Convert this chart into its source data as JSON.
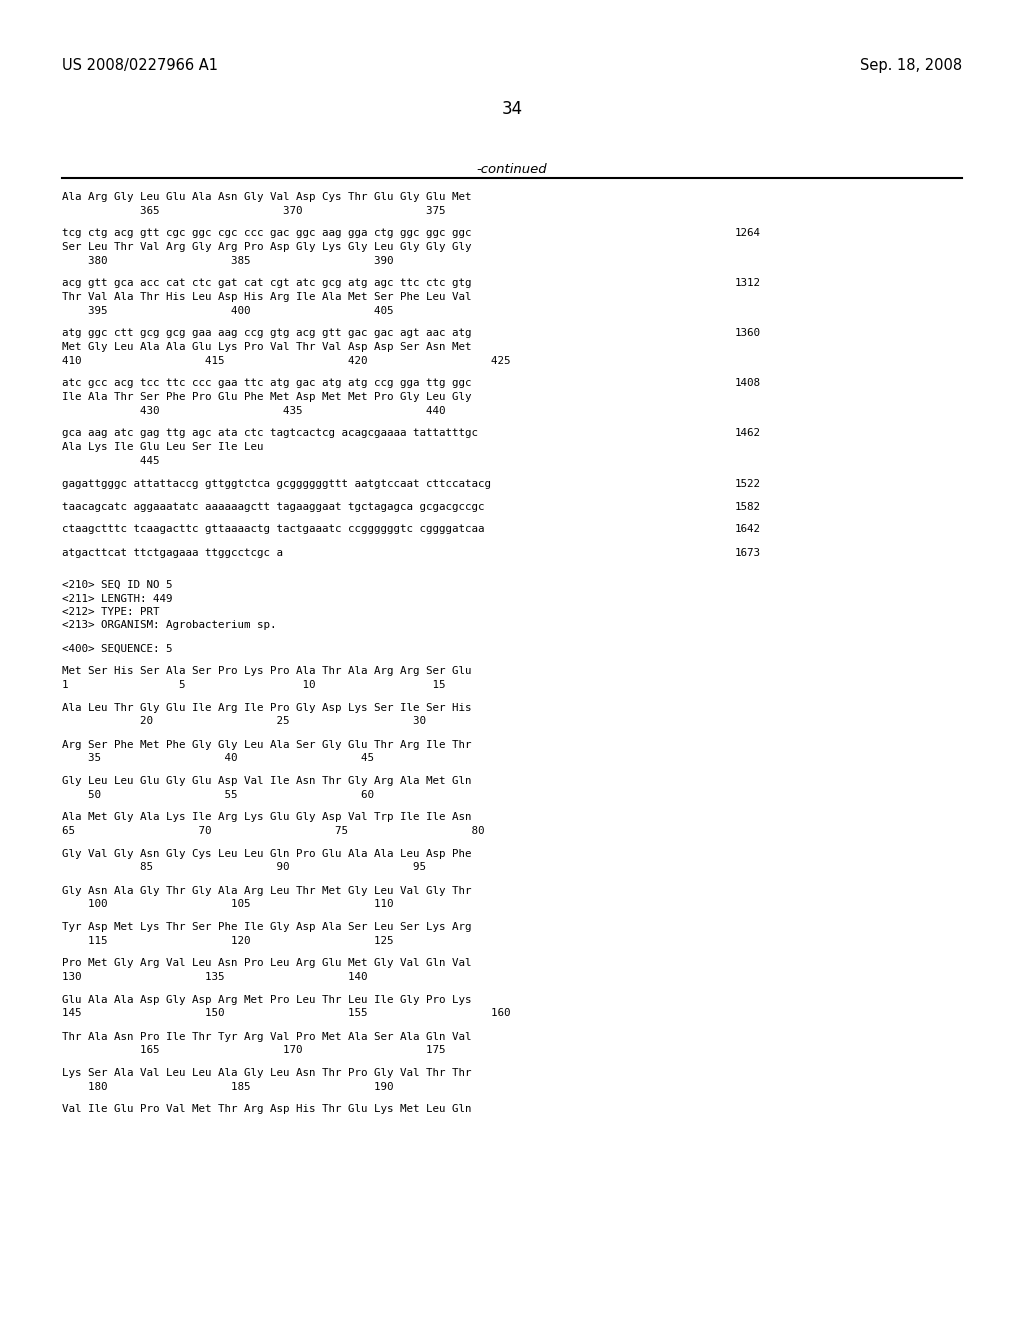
{
  "header_left": "US 2008/0227966 A1",
  "header_right": "Sep. 18, 2008",
  "page_number": "34",
  "continued_label": "-continued",
  "content": [
    {
      "type": "seq",
      "text": "Ala Arg Gly Leu Glu Ala Asn Gly Val Asp Cys Thr Glu Gly Glu Met"
    },
    {
      "type": "num",
      "text": "            365                   370                   375"
    },
    {
      "type": "blank"
    },
    {
      "type": "dna",
      "text": "tcg ctg acg gtt cgc ggc cgc ccc gac ggc aag gga ctg ggc ggc ggc",
      "num": "1264"
    },
    {
      "type": "seq",
      "text": "Ser Leu Thr Val Arg Gly Arg Pro Asp Gly Lys Gly Leu Gly Gly Gly"
    },
    {
      "type": "num",
      "text": "    380                   385                   390"
    },
    {
      "type": "blank"
    },
    {
      "type": "dna",
      "text": "acg gtt gca acc cat ctc gat cat cgt atc gcg atg agc ttc ctc gtg",
      "num": "1312"
    },
    {
      "type": "seq",
      "text": "Thr Val Ala Thr His Leu Asp His Arg Ile Ala Met Ser Phe Leu Val"
    },
    {
      "type": "num",
      "text": "    395                   400                   405"
    },
    {
      "type": "blank"
    },
    {
      "type": "dna",
      "text": "atg ggc ctt gcg gcg gaa aag ccg gtg acg gtt gac gac agt aac atg",
      "num": "1360"
    },
    {
      "type": "seq",
      "text": "Met Gly Leu Ala Ala Glu Lys Pro Val Thr Val Asp Asp Ser Asn Met"
    },
    {
      "type": "num",
      "text": "410                   415                   420                   425"
    },
    {
      "type": "blank"
    },
    {
      "type": "dna",
      "text": "atc gcc acg tcc ttc ccc gaa ttc atg gac atg atg ccg gga ttg ggc",
      "num": "1408"
    },
    {
      "type": "seq",
      "text": "Ile Ala Thr Ser Phe Pro Glu Phe Met Asp Met Met Pro Gly Leu Gly"
    },
    {
      "type": "num",
      "text": "            430                   435                   440"
    },
    {
      "type": "blank"
    },
    {
      "type": "dna",
      "text": "gca aag atc gag ttg agc ata ctc tagtcactcg acagcgaaaa tattatttgc",
      "num": "1462"
    },
    {
      "type": "seq",
      "text": "Ala Lys Ile Glu Leu Ser Ile Leu"
    },
    {
      "type": "num",
      "text": "            445"
    },
    {
      "type": "blank"
    },
    {
      "type": "dna",
      "text": "gagattgggc attattaccg gttggtctca gcggggggttt aatgtccaat cttccatacg",
      "num": "1522"
    },
    {
      "type": "blank"
    },
    {
      "type": "dna",
      "text": "taacagcatc aggaaatatc aaaaaagctt tagaaggaat tgctagagca gcgacgccgc",
      "num": "1582"
    },
    {
      "type": "blank"
    },
    {
      "type": "dna",
      "text": "ctaagctttc tcaagacttc gttaaaactg tactgaaatc ccggggggtc cggggatcaa",
      "num": "1642"
    },
    {
      "type": "blank"
    },
    {
      "type": "dna",
      "text": "atgacttcat ttctgagaaa ttggcctcgc a",
      "num": "1673"
    },
    {
      "type": "blank"
    },
    {
      "type": "blank"
    },
    {
      "type": "meta",
      "text": "<210> SEQ ID NO 5"
    },
    {
      "type": "meta",
      "text": "<211> LENGTH: 449"
    },
    {
      "type": "meta",
      "text": "<212> TYPE: PRT"
    },
    {
      "type": "meta",
      "text": "<213> ORGANISM: Agrobacterium sp."
    },
    {
      "type": "blank"
    },
    {
      "type": "meta",
      "text": "<400> SEQUENCE: 5"
    },
    {
      "type": "blank"
    },
    {
      "type": "seq",
      "text": "Met Ser His Ser Ala Ser Pro Lys Pro Ala Thr Ala Arg Arg Ser Glu"
    },
    {
      "type": "num",
      "text": "1                 5                  10                  15"
    },
    {
      "type": "blank"
    },
    {
      "type": "seq",
      "text": "Ala Leu Thr Gly Glu Ile Arg Ile Pro Gly Asp Lys Ser Ile Ser His"
    },
    {
      "type": "num",
      "text": "            20                   25                   30"
    },
    {
      "type": "blank"
    },
    {
      "type": "seq",
      "text": "Arg Ser Phe Met Phe Gly Gly Leu Ala Ser Gly Glu Thr Arg Ile Thr"
    },
    {
      "type": "num",
      "text": "    35                   40                   45"
    },
    {
      "type": "blank"
    },
    {
      "type": "seq",
      "text": "Gly Leu Leu Glu Gly Glu Asp Val Ile Asn Thr Gly Arg Ala Met Gln"
    },
    {
      "type": "num",
      "text": "    50                   55                   60"
    },
    {
      "type": "blank"
    },
    {
      "type": "seq",
      "text": "Ala Met Gly Ala Lys Ile Arg Lys Glu Gly Asp Val Trp Ile Ile Asn"
    },
    {
      "type": "num",
      "text": "65                   70                   75                   80"
    },
    {
      "type": "blank"
    },
    {
      "type": "seq",
      "text": "Gly Val Gly Asn Gly Cys Leu Leu Gln Pro Glu Ala Ala Leu Asp Phe"
    },
    {
      "type": "num",
      "text": "            85                   90                   95"
    },
    {
      "type": "blank"
    },
    {
      "type": "seq",
      "text": "Gly Asn Ala Gly Thr Gly Ala Arg Leu Thr Met Gly Leu Val Gly Thr"
    },
    {
      "type": "num",
      "text": "    100                   105                   110"
    },
    {
      "type": "blank"
    },
    {
      "type": "seq",
      "text": "Tyr Asp Met Lys Thr Ser Phe Ile Gly Asp Ala Ser Leu Ser Lys Arg"
    },
    {
      "type": "num",
      "text": "    115                   120                   125"
    },
    {
      "type": "blank"
    },
    {
      "type": "seq",
      "text": "Pro Met Gly Arg Val Leu Asn Pro Leu Arg Glu Met Gly Val Gln Val"
    },
    {
      "type": "num",
      "text": "130                   135                   140"
    },
    {
      "type": "blank"
    },
    {
      "type": "seq",
      "text": "Glu Ala Ala Asp Gly Asp Arg Met Pro Leu Thr Leu Ile Gly Pro Lys"
    },
    {
      "type": "num",
      "text": "145                   150                   155                   160"
    },
    {
      "type": "blank"
    },
    {
      "type": "seq",
      "text": "Thr Ala Asn Pro Ile Thr Tyr Arg Val Pro Met Ala Ser Ala Gln Val"
    },
    {
      "type": "num",
      "text": "            165                   170                   175"
    },
    {
      "type": "blank"
    },
    {
      "type": "seq",
      "text": "Lys Ser Ala Val Leu Leu Ala Gly Leu Asn Thr Pro Gly Val Thr Thr"
    },
    {
      "type": "num",
      "text": "    180                   185                   190"
    },
    {
      "type": "blank"
    },
    {
      "type": "seq",
      "text": "Val Ile Glu Pro Val Met Thr Arg Asp His Thr Glu Lys Met Leu Gln"
    }
  ]
}
